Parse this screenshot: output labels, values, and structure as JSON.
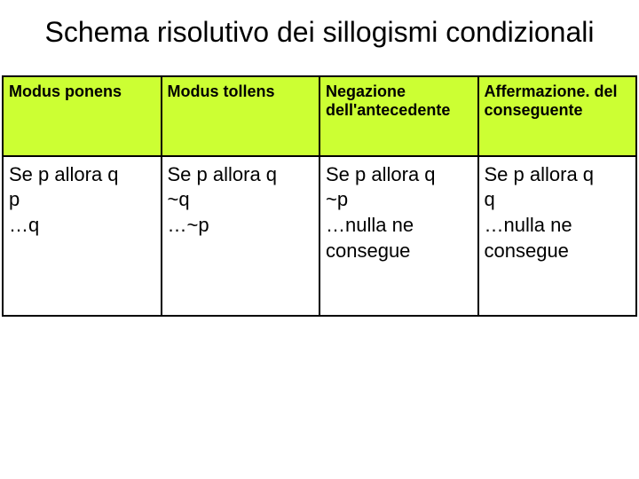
{
  "title": "Schema risolutivo dei sillogismi condizionali",
  "table": {
    "header_bg": "#ccff33",
    "border_color": "#000000",
    "columns": [
      {
        "header": "Modus ponens",
        "lines": [
          "Se p allora q",
          "p",
          "…q"
        ]
      },
      {
        "header": "Modus tollens",
        "lines": [
          "Se p allora q",
          "~q",
          "…~p"
        ]
      },
      {
        "header": "Negazione dell'antecedente",
        "lines": [
          "Se p allora q",
          "~p",
          "…nulla ne",
          "consegue"
        ]
      },
      {
        "header": "Affermazione. del conseguente",
        "lines": [
          "Se p allora q",
          "q",
          "…nulla ne",
          "consegue"
        ]
      }
    ]
  },
  "fonts": {
    "title_size": 32,
    "header_size": 18,
    "cell_size": 22
  }
}
